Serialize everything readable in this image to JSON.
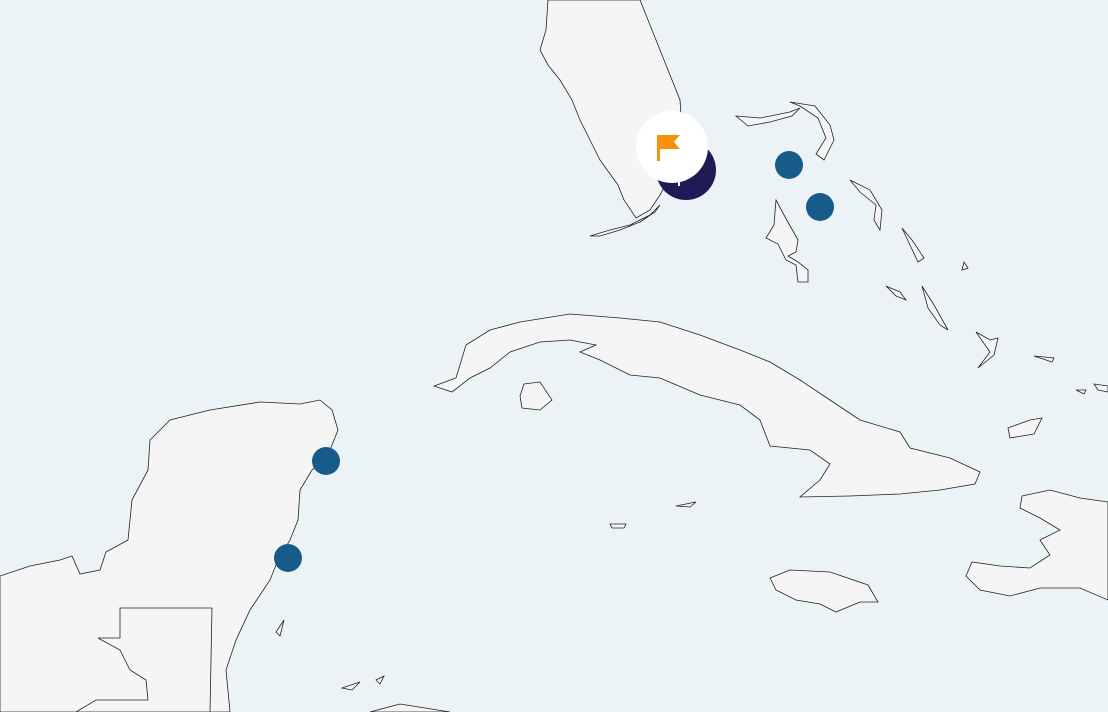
{
  "map": {
    "colors": {
      "water": "#ecf3f7",
      "land": "#f5f5f5",
      "border": "#222222",
      "marker": "#175b8a",
      "selected": "#1f1c55",
      "flag": "#f7900d"
    },
    "markers": [
      {
        "name": "marker-bahamas-north",
        "icon": "circle"
      },
      {
        "name": "marker-bahamas-south",
        "icon": "circle"
      },
      {
        "name": "marker-cancun",
        "icon": "circle"
      },
      {
        "name": "marker-cozumel-south",
        "icon": "circle"
      }
    ],
    "selected_marker": {
      "name": "marker-miami",
      "icon": "maple-leaf-icon",
      "badge_icon": "flag-icon"
    }
  }
}
